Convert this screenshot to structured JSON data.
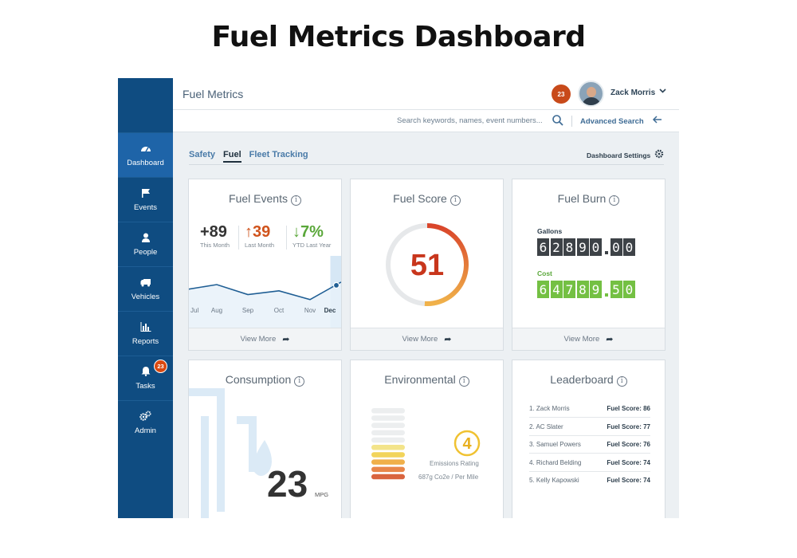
{
  "page_title": "Fuel Metrics Dashboard",
  "app": {
    "name": "Fuel Metrics"
  },
  "header": {
    "notification_count": "23",
    "user_name": "Zack Morris",
    "search_placeholder": "Search keywords, names, event numbers...",
    "advanced_search": "Advanced Search"
  },
  "sidebar": {
    "items": [
      {
        "label": "Dashboard",
        "icon": "gauge-icon",
        "active": true
      },
      {
        "label": "Events",
        "icon": "flag-icon"
      },
      {
        "label": "People",
        "icon": "person-icon"
      },
      {
        "label": "Vehicles",
        "icon": "truck-icon"
      },
      {
        "label": "Reports",
        "icon": "bar-chart-icon"
      },
      {
        "label": "Tasks",
        "icon": "bell-icon",
        "badge": "23"
      },
      {
        "label": "Admin",
        "icon": "gears-icon"
      }
    ]
  },
  "tabs": [
    {
      "label": "Safety"
    },
    {
      "label": "Fuel",
      "active": true
    },
    {
      "label": "Fleet Tracking"
    }
  ],
  "dashboard_settings": "Dashboard Settings",
  "cards": {
    "fuel_events": {
      "title": "Fuel Events",
      "stats": [
        {
          "value": "+89",
          "label": "This Month",
          "color": "#333333"
        },
        {
          "value": "↑39",
          "label": "Last Month",
          "color": "#d0531c"
        },
        {
          "value": "↓7%",
          "label": "YTD Last Year",
          "color": "#5aa73a"
        }
      ],
      "footer": "View More"
    },
    "fuel_score": {
      "title": "Fuel Score",
      "value": "51",
      "score_fraction": 0.51,
      "footer": "View More"
    },
    "fuel_burn": {
      "title": "Fuel Burn",
      "gallons_label": "Gallons",
      "gallons_int": "62890",
      "gallons_dec": "00",
      "cost_label": "Cost",
      "cost_int": "64789",
      "cost_dec": "50",
      "footer": "View More"
    },
    "consumption": {
      "title": "Consumption",
      "value": "23",
      "unit": "MPG"
    },
    "environmental": {
      "title": "Environmental",
      "rating": "4",
      "rating_label": "Emissions Rating",
      "emissions": "687g Co2e / Per Mile",
      "level_bars_filled": 4,
      "level_bars_total": 10
    },
    "leaderboard": {
      "title": "Leaderboard",
      "rows": [
        {
          "name": "1. Zack Morris",
          "score": "Fuel Score: 86"
        },
        {
          "name": "2. AC Slater",
          "score": "Fuel Score: 77"
        },
        {
          "name": "3. Samuel Powers",
          "score": "Fuel Score: 76"
        },
        {
          "name": "4. Richard Belding",
          "score": "Fuel Score: 74"
        },
        {
          "name": "5. Kelly Kapowski",
          "score": "Fuel Score: 74"
        }
      ]
    }
  },
  "chart_data": {
    "type": "area",
    "categories": [
      "Jul",
      "Aug",
      "Sep",
      "Oct",
      "Nov",
      "Dec"
    ],
    "values": [
      52,
      60,
      44,
      50,
      36,
      64
    ],
    "highlight": "Dec",
    "ylim": [
      0,
      100
    ]
  }
}
